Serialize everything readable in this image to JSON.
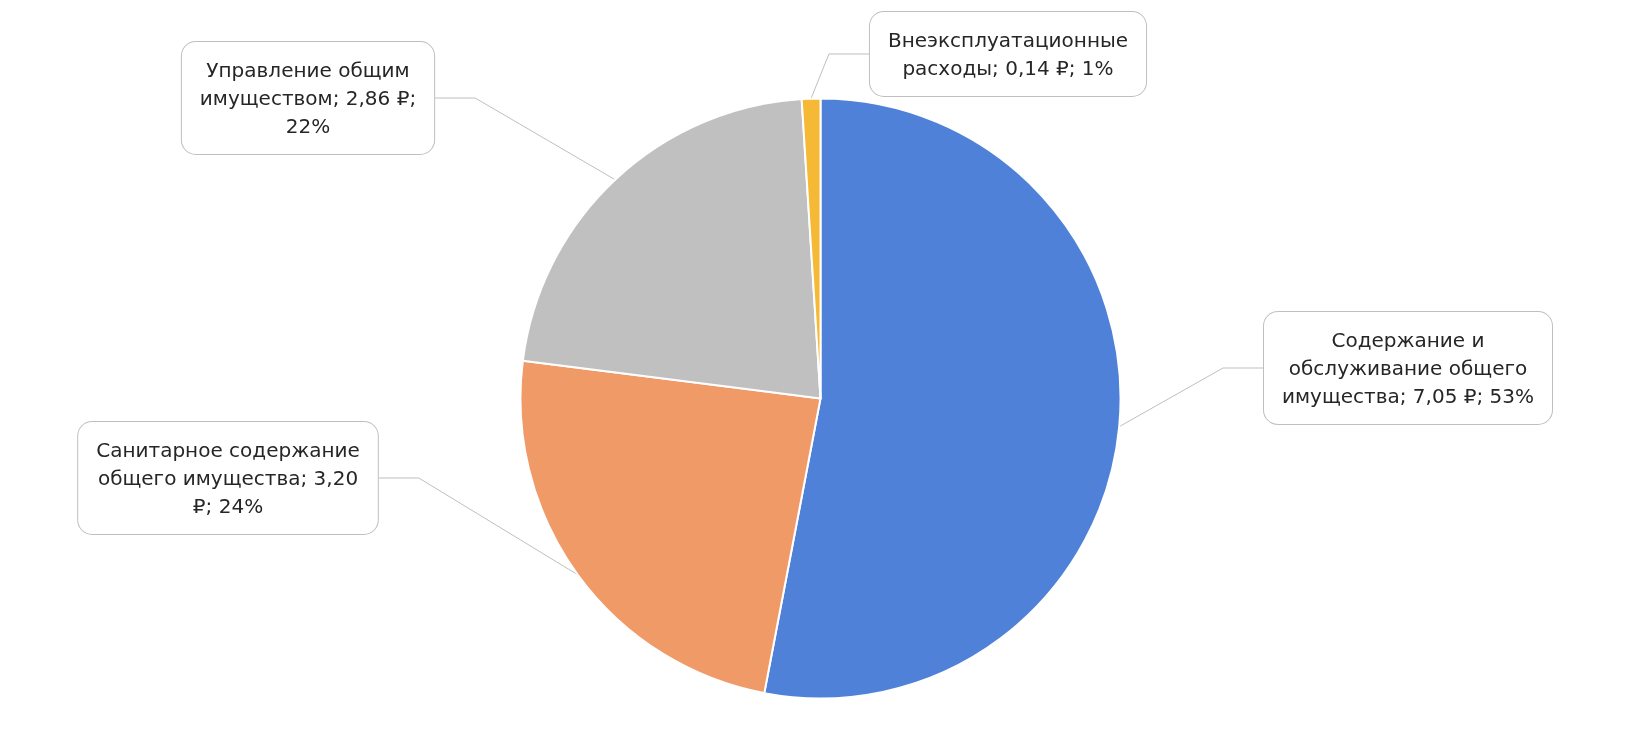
{
  "chart_data": {
    "type": "pie",
    "categories": [
      "Содержание и обслуживание общего имущества",
      "Санитарное содержание общего имущества",
      "Управление общим имуществом",
      "Внеэксплуатационные расходы"
    ],
    "values": [
      53,
      24,
      22,
      1
    ],
    "value_labels": [
      "7,05 ₽; 53%",
      "3,20 ₽; 24%",
      "2,86 ₽; 22%",
      "0,14 ₽; 1%"
    ],
    "colors": [
      "#4f81d9",
      "#f09a68",
      "#c0c0c0",
      "#f5b935"
    ],
    "legend": false
  }
}
